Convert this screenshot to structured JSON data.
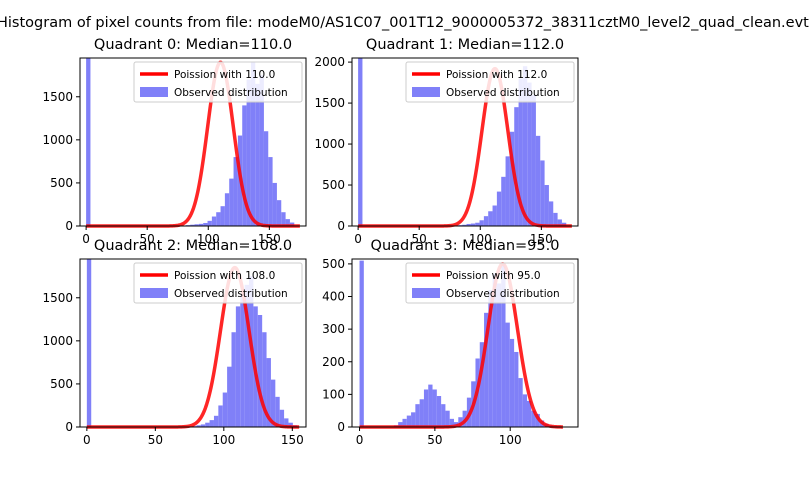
{
  "suptitle": "Histogram of pixel counts from file: modeM0/AS1C07_001T12_9000005372_38311cztM0_level2_quad_clean.evt",
  "colors": {
    "bar": "#8080f8",
    "fit": "#ff0000",
    "axis": "#000000"
  },
  "chart_data": [
    {
      "type": "bar",
      "title": "Quadrant 0: Median=110.0",
      "xlim": [
        -5,
        180
      ],
      "ylim": [
        0,
        1950
      ],
      "xticks": [
        0,
        50,
        100,
        150
      ],
      "yticks": [
        0,
        500,
        1000,
        1500
      ],
      "legend": {
        "placement": "top-right",
        "entries": [
          "Poission with 110.0",
          "Observed distribution"
        ]
      },
      "bins_start": 0,
      "bin_width": 3.55,
      "counts": [
        1950,
        0,
        0,
        0,
        0,
        0,
        0,
        0,
        0,
        0,
        0,
        0,
        0,
        0,
        0,
        0,
        0,
        0,
        0,
        0,
        0,
        2,
        5,
        10,
        15,
        20,
        25,
        35,
        60,
        110,
        160,
        230,
        380,
        550,
        800,
        1050,
        1400,
        1700,
        1900,
        1650,
        1750,
        1100,
        800,
        500,
        300,
        160,
        80,
        40
      ],
      "fit": {
        "mean": 110.0,
        "sigma": 10.5,
        "peak": 1900,
        "x_range": [
          0,
          175
        ]
      }
    },
    {
      "type": "bar",
      "title": "Quadrant 1: Median=112.0",
      "xlim": [
        -5,
        180
      ],
      "ylim": [
        0,
        2050
      ],
      "xticks": [
        0,
        50,
        100,
        150
      ],
      "yticks": [
        0,
        500,
        1000,
        1500,
        2000
      ],
      "legend": {
        "placement": "top-right",
        "entries": [
          "Poission with 112.0",
          "Observed distribution"
        ]
      },
      "bins_start": 0,
      "bin_width": 3.55,
      "counts": [
        2050,
        0,
        0,
        0,
        0,
        0,
        0,
        0,
        0,
        0,
        0,
        0,
        0,
        0,
        0,
        0,
        0,
        0,
        0,
        0,
        0,
        2,
        5,
        10,
        15,
        25,
        30,
        40,
        70,
        120,
        180,
        250,
        420,
        600,
        850,
        1150,
        1450,
        1800,
        1950,
        1750,
        1600,
        1100,
        800,
        500,
        300,
        160,
        80,
        40
      ],
      "fit": {
        "mean": 112.0,
        "sigma": 10.6,
        "peak": 1920,
        "x_range": [
          0,
          175
        ]
      }
    },
    {
      "type": "bar",
      "title": "Quadrant 2: Median=108.0",
      "xlim": [
        -5,
        160
      ],
      "ylim": [
        0,
        1950
      ],
      "xticks": [
        0,
        50,
        100,
        150
      ],
      "yticks": [
        0,
        500,
        1000,
        1500
      ],
      "legend": {
        "placement": "top-right",
        "entries": [
          "Poission with 108.0",
          "Observed distribution"
        ]
      },
      "bins_start": 0,
      "bin_width": 3.2,
      "counts": [
        1950,
        0,
        0,
        0,
        0,
        0,
        0,
        0,
        0,
        0,
        0,
        0,
        0,
        0,
        0,
        0,
        0,
        0,
        0,
        0,
        0,
        0,
        0,
        3,
        10,
        20,
        30,
        50,
        80,
        130,
        250,
        400,
        700,
        1100,
        1400,
        1550,
        1650,
        1750,
        1400,
        1300,
        1100,
        800,
        550,
        350,
        200,
        100,
        50,
        20
      ],
      "fit": {
        "mean": 108.0,
        "sigma": 10.4,
        "peak": 1850,
        "x_range": [
          0,
          155
        ]
      }
    },
    {
      "type": "bar",
      "title": "Quadrant 3: Median=95.0",
      "xlim": [
        -5,
        145
      ],
      "ylim": [
        0,
        515
      ],
      "xticks": [
        0,
        50,
        100
      ],
      "yticks": [
        0,
        100,
        200,
        300,
        400,
        500
      ],
      "legend": {
        "placement": "top-right",
        "entries": [
          "Poission with 95.0",
          "Observed distribution"
        ]
      },
      "bins_start": 0,
      "bin_width": 2.85,
      "counts": [
        510,
        0,
        0,
        0,
        0,
        0,
        0,
        0,
        5,
        15,
        25,
        35,
        45,
        70,
        85,
        115,
        130,
        115,
        95,
        70,
        50,
        25,
        15,
        30,
        50,
        90,
        140,
        210,
        260,
        350,
        420,
        470,
        440,
        500,
        320,
        270,
        230,
        150,
        100,
        80,
        50,
        40,
        20,
        10,
        5,
        2,
        0,
        0
      ],
      "fit": {
        "mean": 95.0,
        "sigma": 9.75,
        "peak": 500,
        "x_range": [
          0,
          135
        ]
      }
    }
  ]
}
